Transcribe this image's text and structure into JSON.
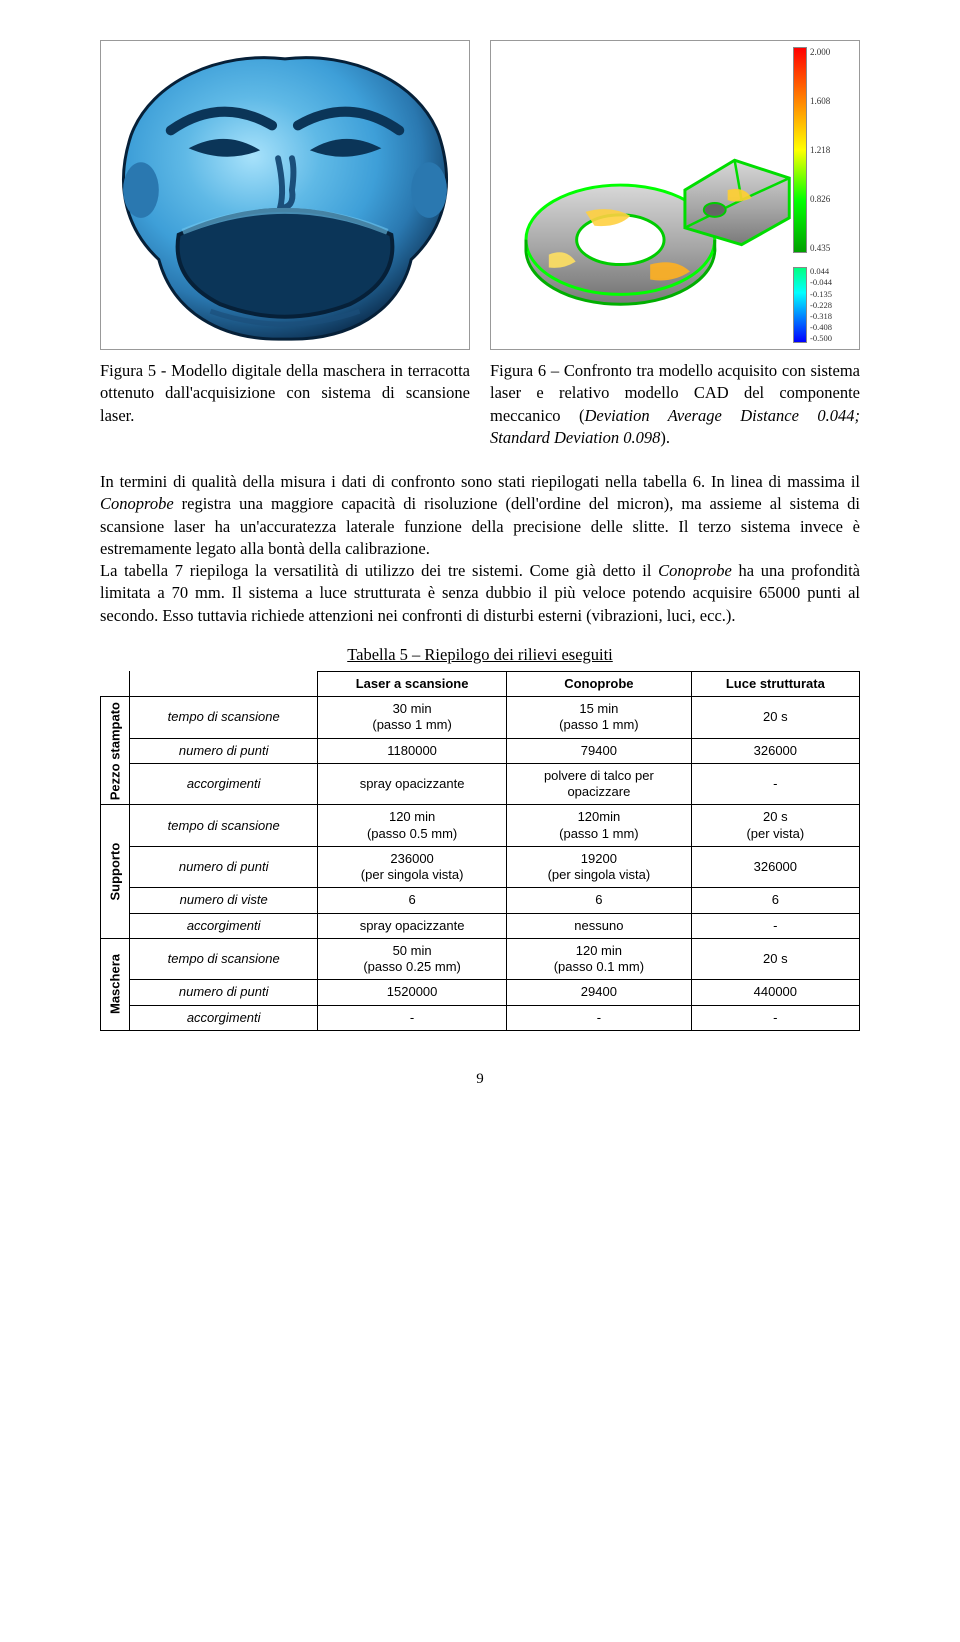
{
  "figures": {
    "mask": {
      "type": "3d-mesh-render",
      "shading_colors": [
        "#0a2a4a",
        "#1b4f7a",
        "#2a78b0",
        "#3e9fd8",
        "#6fc6ee",
        "#a8e2fb"
      ],
      "background": "#ffffff"
    },
    "cad": {
      "type": "3d-deviation-render",
      "body_color": "#a8a8a8",
      "edge_color": "#00ff00",
      "hot_color": "#ffcc00",
      "background": "#ffffff",
      "colorbar_upper": {
        "colors": [
          "#ff0000",
          "#ff8000",
          "#ffff00",
          "#00ff00",
          "#00a000"
        ],
        "labels": [
          "2.000",
          "1.608",
          "1.218",
          "0.826",
          "0.435"
        ]
      },
      "colorbar_lower": {
        "colors": [
          "#00ff80",
          "#00ffff",
          "#0080ff",
          "#0000ff"
        ],
        "labels": [
          "0.044",
          "-0.044",
          "-0.135",
          "-0.228",
          "-0.318",
          "-0.408",
          "-0.500"
        ]
      }
    },
    "caption_mask": "Figura 5 - Modello digitale della maschera in terracotta ottenuto dall'acquisizione con sistema di scansione laser.",
    "caption_cad_pre": "Figura 6 – Confronto tra modello acquisito con sistema laser e relativo modello CAD del componente meccanico (",
    "caption_cad_italic": "Deviation Average Distance 0.044; Standard Deviation 0.098",
    "caption_cad_post": ")."
  },
  "body": {
    "para": "In termini di qualità della misura i dati di confronto sono stati riepilogati nella tabella 6. In linea di massima il ",
    "it1": "Conoprobe",
    "para2": " registra una maggiore capacità di risoluzione (dell'ordine del micron), ma assieme al sistema di scansione laser ha un'accuratezza laterale funzione della precisione delle slitte. Il terzo sistema invece è estremamente legato alla bontà della calibrazione.",
    "para3": "La tabella 7 riepiloga la versatilità di utilizzo dei tre sistemi. Come già detto il ",
    "it2": "Conoprobe",
    "para4": " ha una profondità limitata a 70 mm. Il sistema a luce strutturata è senza dubbio il più veloce potendo acquisire 65000 punti al secondo. Esso tuttavia richiede attenzioni nei confronti di disturbi esterni (vibrazioni, luci, ecc.)."
  },
  "table": {
    "title": "Tabella 5 – Riepilogo dei rilievi eseguiti",
    "columns": [
      "",
      "",
      "Laser a scansione",
      "Conoprobe",
      "Luce strutturata"
    ],
    "groups": [
      {
        "label": "Pezzo stampato",
        "rows": [
          {
            "label": "tempo di scansione",
            "cells": [
              "30 min\n(passo 1 mm)",
              "15 min\n(passo 1 mm)",
              "20 s"
            ]
          },
          {
            "label": "numero di punti",
            "cells": [
              "1180000",
              "79400",
              "326000"
            ]
          },
          {
            "label": "accorgimenti",
            "cells": [
              "spray opacizzante",
              "polvere di talco per\nopacizzare",
              "-"
            ]
          }
        ]
      },
      {
        "label": "Supporto",
        "rows": [
          {
            "label": "tempo di scansione",
            "cells": [
              "120 min\n(passo 0.5 mm)",
              "120min\n(passo 1 mm)",
              "20 s\n(per vista)"
            ]
          },
          {
            "label": "numero di punti",
            "cells": [
              "236000\n(per singola vista)",
              "19200\n(per singola vista)",
              "326000"
            ]
          },
          {
            "label": "numero di viste",
            "cells": [
              "6",
              "6",
              "6"
            ]
          },
          {
            "label": "accorgimenti",
            "cells": [
              "spray opacizzante",
              "nessuno",
              "-"
            ]
          }
        ]
      },
      {
        "label": "Maschera",
        "rows": [
          {
            "label": "tempo di scansione",
            "cells": [
              "50 min\n(passo 0.25 mm)",
              "120 min\n(passo 0.1 mm)",
              "20 s"
            ]
          },
          {
            "label": "numero di punti",
            "cells": [
              "1520000",
              "29400",
              "440000"
            ]
          },
          {
            "label": "accorgimenti",
            "cells": [
              "-",
              "-",
              "-"
            ]
          }
        ]
      }
    ]
  },
  "pagenum": "9"
}
